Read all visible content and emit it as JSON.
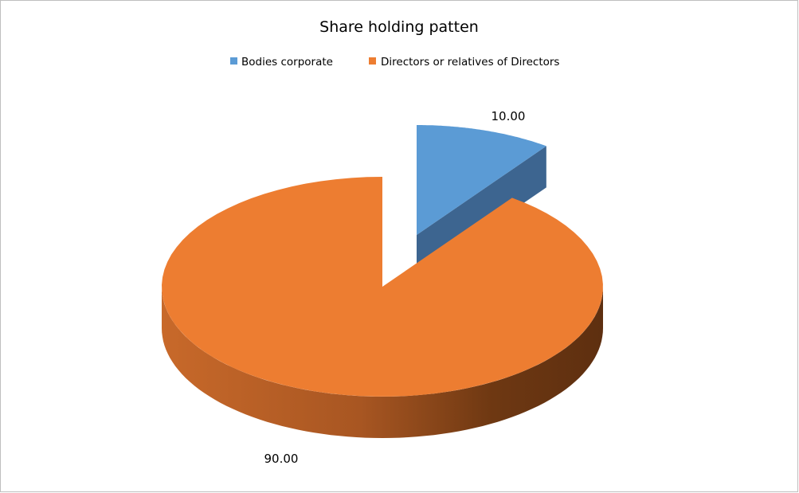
{
  "chart_data": {
    "type": "pie",
    "style": "3d-exploded",
    "title": "Share holding patten",
    "legend_position": "top",
    "slices": [
      {
        "name": "Bodies corporate",
        "value": 10.0,
        "label": "10.00",
        "color": "#5b9bd5",
        "exploded": true
      },
      {
        "name": "Directors or relatives of Directors",
        "value": 90.0,
        "label": "90.00",
        "color": "#ed7d31",
        "exploded": false
      }
    ]
  }
}
